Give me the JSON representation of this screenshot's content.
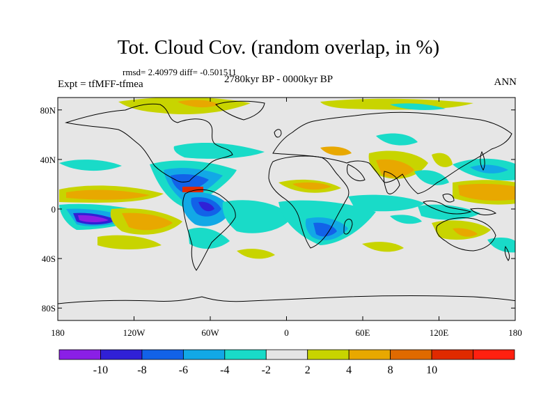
{
  "title": "Tot. Cloud Cov. (random overlap, in %)",
  "stats_line": "rmsd= 2.40979 diff= -0.501511",
  "experiment": "Expt = tfMFF-tfmea",
  "period": "2780kyr BP - 0000kyr BP",
  "season": "ANN",
  "lat_ticks": [
    {
      "label": "80N",
      "value": 80
    },
    {
      "label": "40N",
      "value": 40
    },
    {
      "label": "0",
      "value": 0
    },
    {
      "label": "40S",
      "value": -40
    },
    {
      "label": "80S",
      "value": -80
    }
  ],
  "lon_ticks": [
    {
      "label": "180",
      "value": -180
    },
    {
      "label": "120W",
      "value": -120
    },
    {
      "label": "60W",
      "value": -60
    },
    {
      "label": "0",
      "value": 0
    },
    {
      "label": "60E",
      "value": 60
    },
    {
      "label": "120E",
      "value": 120
    },
    {
      "label": "180",
      "value": 180
    }
  ],
  "colorbar": {
    "colors": [
      "#8a1fe6",
      "#3020d6",
      "#1262e8",
      "#12a8e6",
      "#19dbc8",
      "#e5e5e5",
      "#c8d400",
      "#e8a800",
      "#e06a00",
      "#e02a00",
      "#ff2010"
    ],
    "labels": [
      "-10",
      "-8",
      "-6",
      "-4",
      "-2",
      "2",
      "4",
      "8",
      "10"
    ]
  },
  "colors": {
    "land_outline": "#000000",
    "background": "#e6e6e6"
  }
}
